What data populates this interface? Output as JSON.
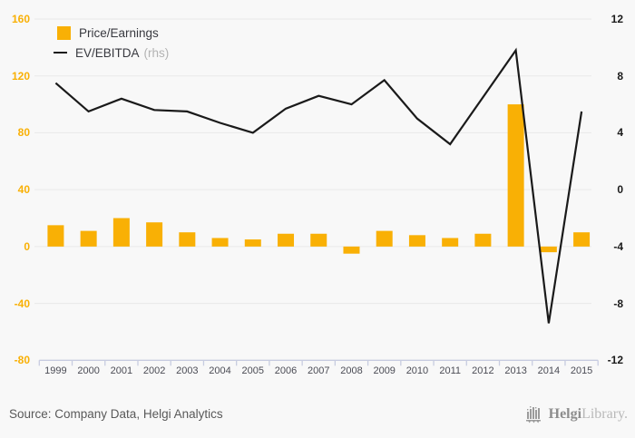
{
  "chart_data": {
    "type": "bar-line-combo",
    "categories": [
      "1999",
      "2000",
      "2001",
      "2002",
      "2003",
      "2004",
      "2005",
      "2006",
      "2007",
      "2008",
      "2009",
      "2010",
      "2011",
      "2012",
      "2013",
      "2014",
      "2015"
    ],
    "series": [
      {
        "name": "Price/Earnings",
        "type": "bar",
        "axis": "left",
        "color": "#f9b005",
        "values": [
          15,
          11,
          20,
          17,
          10,
          6,
          5,
          9,
          9,
          -5,
          11,
          8,
          6,
          9,
          100,
          -4,
          10
        ]
      },
      {
        "name": "EV/EBITDA",
        "type": "line",
        "axis": "right",
        "color": "#1a1a1a",
        "values": [
          7.5,
          5.5,
          6.4,
          5.6,
          5.5,
          4.7,
          4.0,
          5.7,
          6.6,
          6.0,
          7.7,
          5.0,
          3.2,
          6.5,
          9.8,
          -9.4,
          5.5
        ]
      }
    ],
    "left_axis": {
      "ticks": [
        160,
        120,
        80,
        40,
        0,
        -40,
        -80
      ],
      "min": -80,
      "max": 160
    },
    "right_axis": {
      "ticks": [
        12,
        8,
        4,
        0,
        -4,
        -8,
        -12
      ],
      "min": -12,
      "max": 12
    },
    "grid": true,
    "legend_position": "top-left",
    "title": "",
    "xlabel": "",
    "ylabel": ""
  },
  "legend": {
    "items": [
      {
        "label": "Price/Earnings",
        "note": ""
      },
      {
        "label": "EV/EBITDA",
        "note": "(rhs)"
      }
    ]
  },
  "footer": {
    "source": "Source: Company Data, Helgi Analytics",
    "logo_bold": "Helgi",
    "logo_light": "Library."
  },
  "colors": {
    "background": "#f8f8f8",
    "bar": "#f9b005",
    "line": "#1a1a1a",
    "grid": "#e9e9e9",
    "x_axis": "#c7cce0",
    "left_tick_text": "#f9b005",
    "right_tick_text": "#1a1a1a",
    "year_text": "#4b4c55"
  }
}
